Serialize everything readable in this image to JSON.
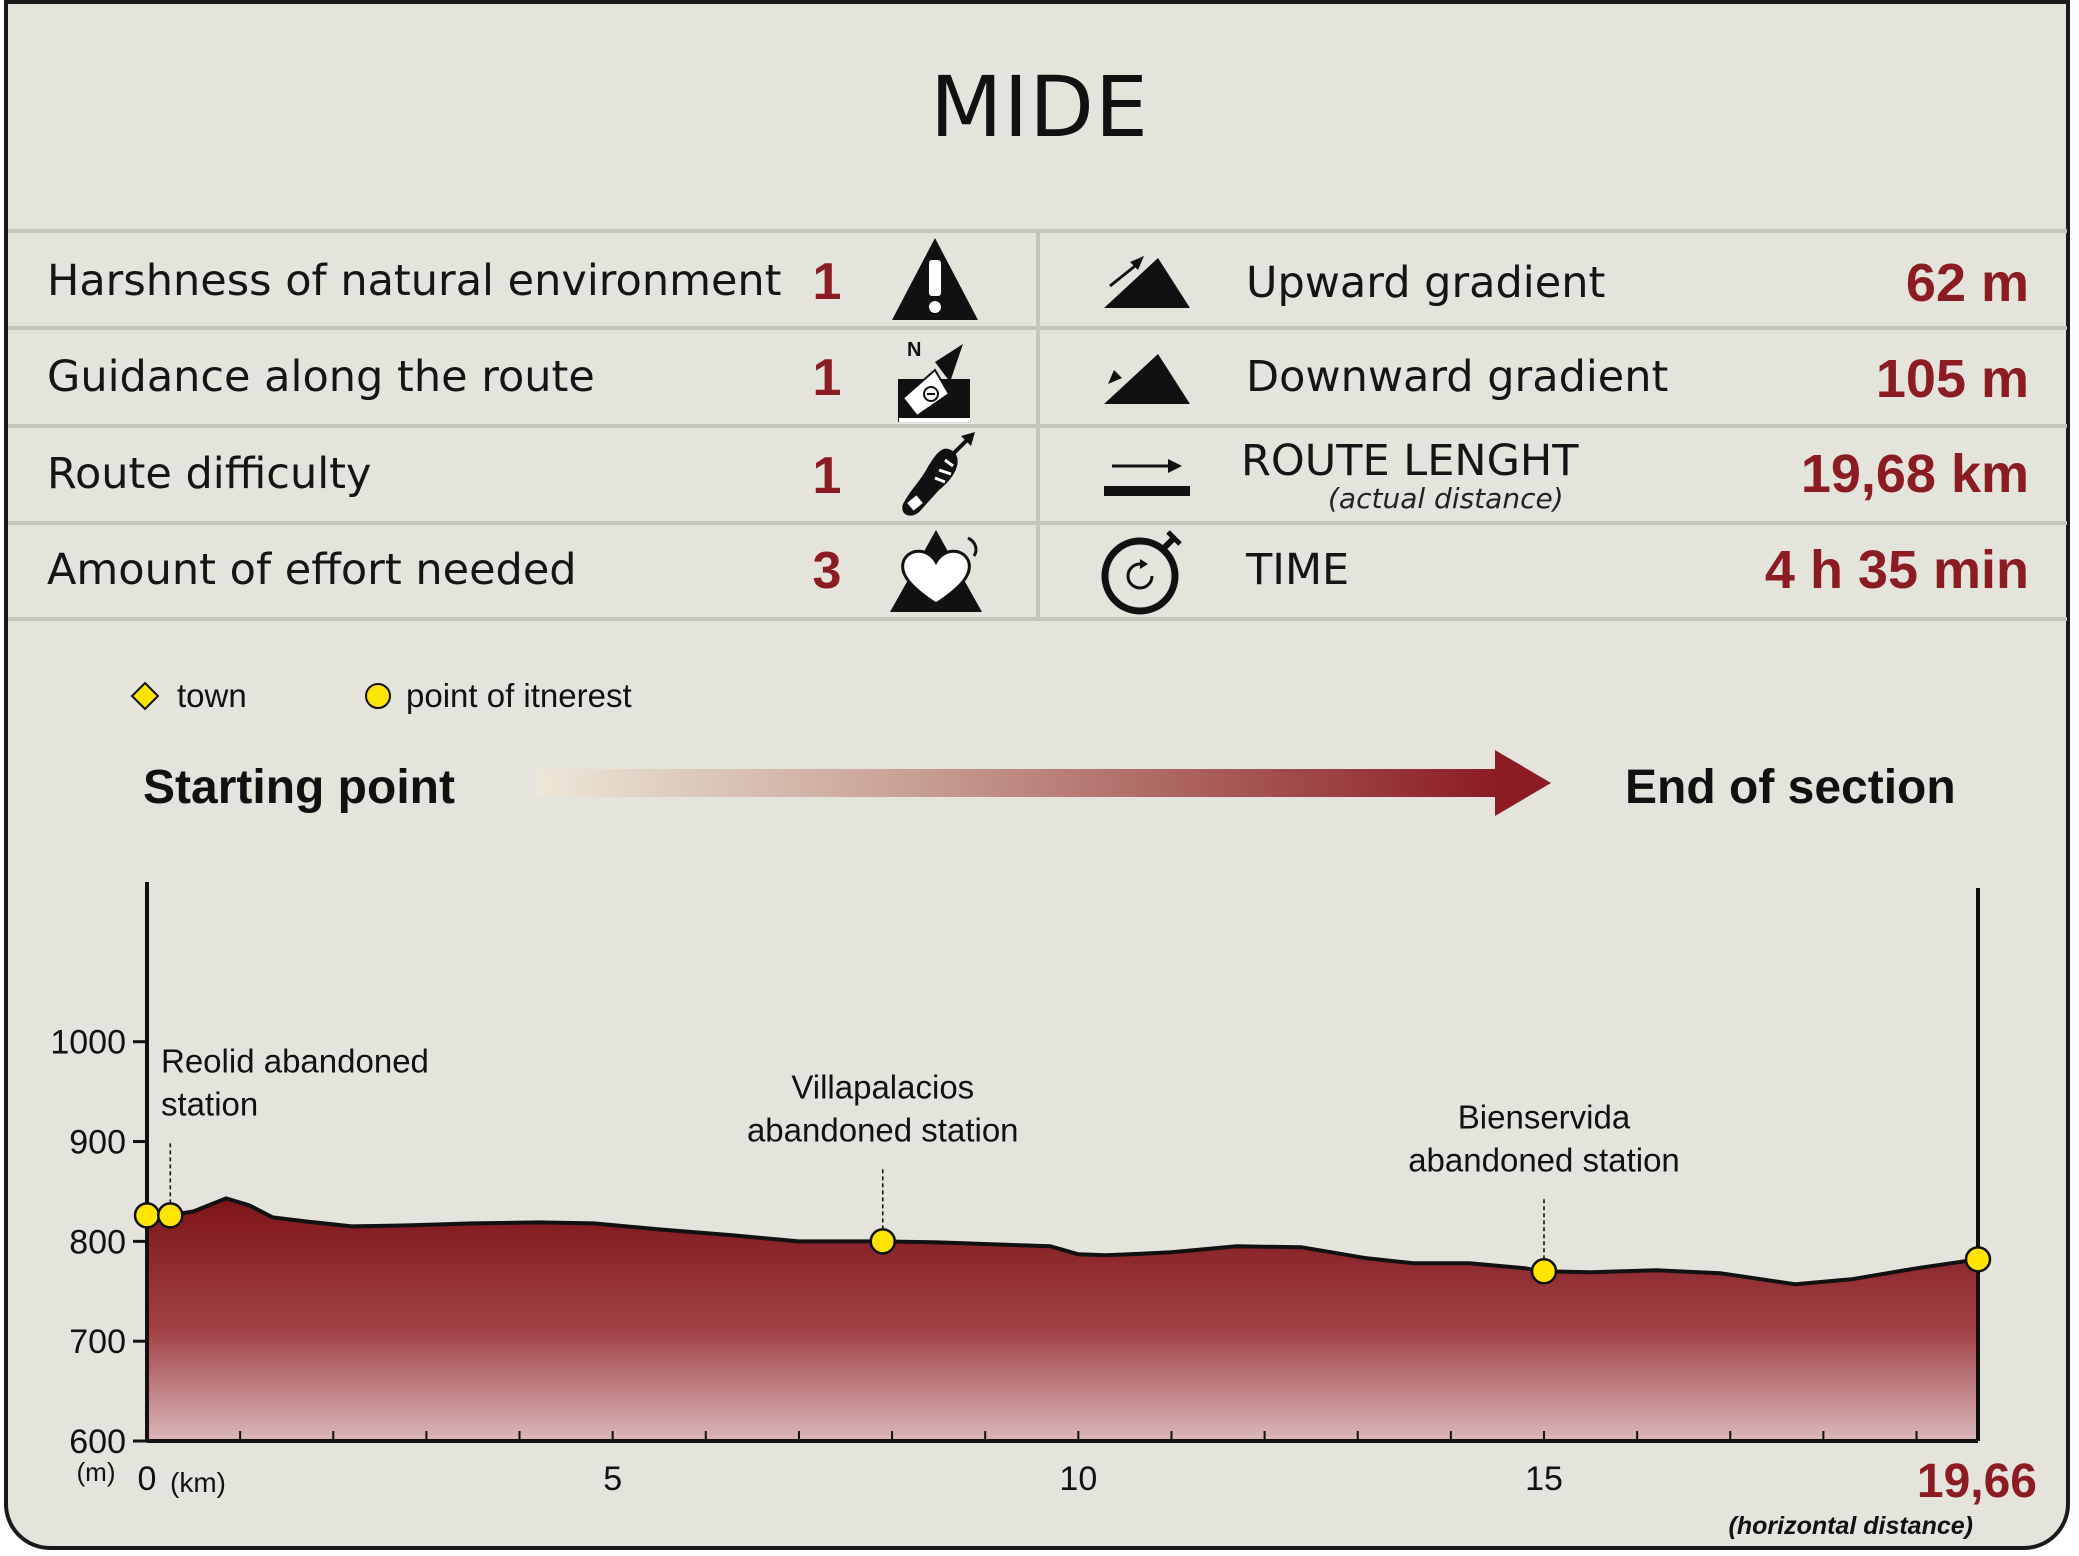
{
  "title": "MIDE",
  "mide_rows": [
    {
      "label": "Harshness of natural environment",
      "value": "1",
      "icon": "warning-mountain-icon"
    },
    {
      "label": "Guidance along the route",
      "value": "1",
      "icon": "compass-sign-icon"
    },
    {
      "label": "Route difficulty",
      "value": "1",
      "icon": "footprint-icon"
    },
    {
      "label": "Amount of effort needed",
      "value": "3",
      "icon": "heart-mountain-icon"
    }
  ],
  "route_rows": [
    {
      "label": "Upward gradient",
      "value": "62 m",
      "icon": "upward-slope-icon"
    },
    {
      "label": "Downward gradient",
      "value": "105 m",
      "icon": "downward-slope-icon"
    },
    {
      "label": "ROUTE LENGHT",
      "sublabel": "(actual distance)",
      "value": "19,68 km",
      "icon": "route-length-icon"
    },
    {
      "label": "TIME",
      "value": "4 h 35 min",
      "icon": "stopwatch-icon"
    }
  ],
  "legend": {
    "town": "town",
    "poi": "point of itnerest"
  },
  "direction": {
    "start": "Starting point",
    "end": "End of section"
  },
  "colors": {
    "accent": "#8b1c23",
    "marker": "#ffe400",
    "background": "#e5e4dc"
  },
  "chart_data": {
    "type": "area",
    "y_unit": "(m)",
    "x_unit": "(km)",
    "ylim": [
      600,
      1160
    ],
    "xlim": [
      0,
      19.66
    ],
    "yticks": [
      600,
      700,
      800,
      900,
      1000
    ],
    "xticks": [
      0,
      5,
      10,
      15
    ],
    "x_end_label": "19,66",
    "x_end_sublabel": "(horizontal distance)",
    "profile": {
      "x": [
        0,
        0.25,
        0.5,
        0.85,
        1.1,
        1.35,
        1.7,
        2.2,
        2.8,
        3.5,
        4.2,
        4.8,
        5.5,
        6.3,
        7.0,
        7.9,
        8.5,
        9.1,
        9.7,
        10.0,
        10.3,
        11.0,
        11.7,
        12.4,
        13.1,
        13.6,
        14.2,
        14.8,
        15.0,
        15.5,
        16.2,
        16.9,
        17.7,
        18.3,
        19.0,
        19.66
      ],
      "y": [
        826,
        826,
        830,
        843,
        836,
        824,
        820,
        815,
        816,
        818,
        819,
        818,
        812,
        806,
        800,
        800,
        799,
        797,
        795,
        787,
        786,
        789,
        795,
        794,
        783,
        778,
        778,
        773,
        770,
        769,
        771,
        768,
        757,
        762,
        773,
        782
      ]
    },
    "points_of_interest": [
      {
        "x": 0,
        "y": 826
      },
      {
        "x": 0.25,
        "y": 826,
        "label": [
          "Reolid abandoned",
          "station"
        ]
      },
      {
        "x": 7.9,
        "y": 800,
        "label": [
          "Villapalacios",
          "abandoned station"
        ]
      },
      {
        "x": 15.0,
        "y": 770,
        "label": [
          "Bienservida",
          "abandoned station"
        ]
      },
      {
        "x": 19.66,
        "y": 782
      }
    ]
  }
}
